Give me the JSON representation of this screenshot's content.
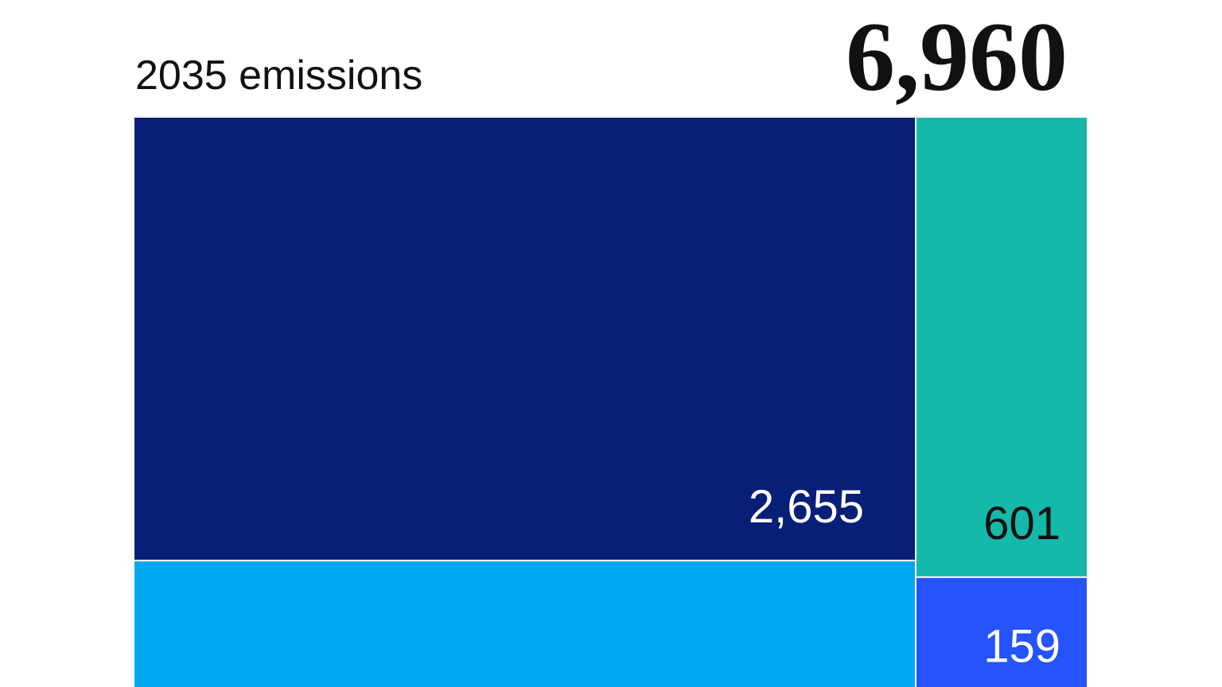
{
  "chart_data": {
    "type": "treemap",
    "title": "2035 emissions",
    "total": {
      "value": 6960,
      "label": "6,960"
    },
    "values": [
      2655,
      601,
      159
    ],
    "value_labels": [
      "2,655",
      "601",
      "159"
    ],
    "colors": [
      "#081f78",
      "#14b9aa",
      "#2553fd"
    ],
    "label_colors": [
      "#ffffff",
      "#111111",
      "#ffffff"
    ]
  }
}
